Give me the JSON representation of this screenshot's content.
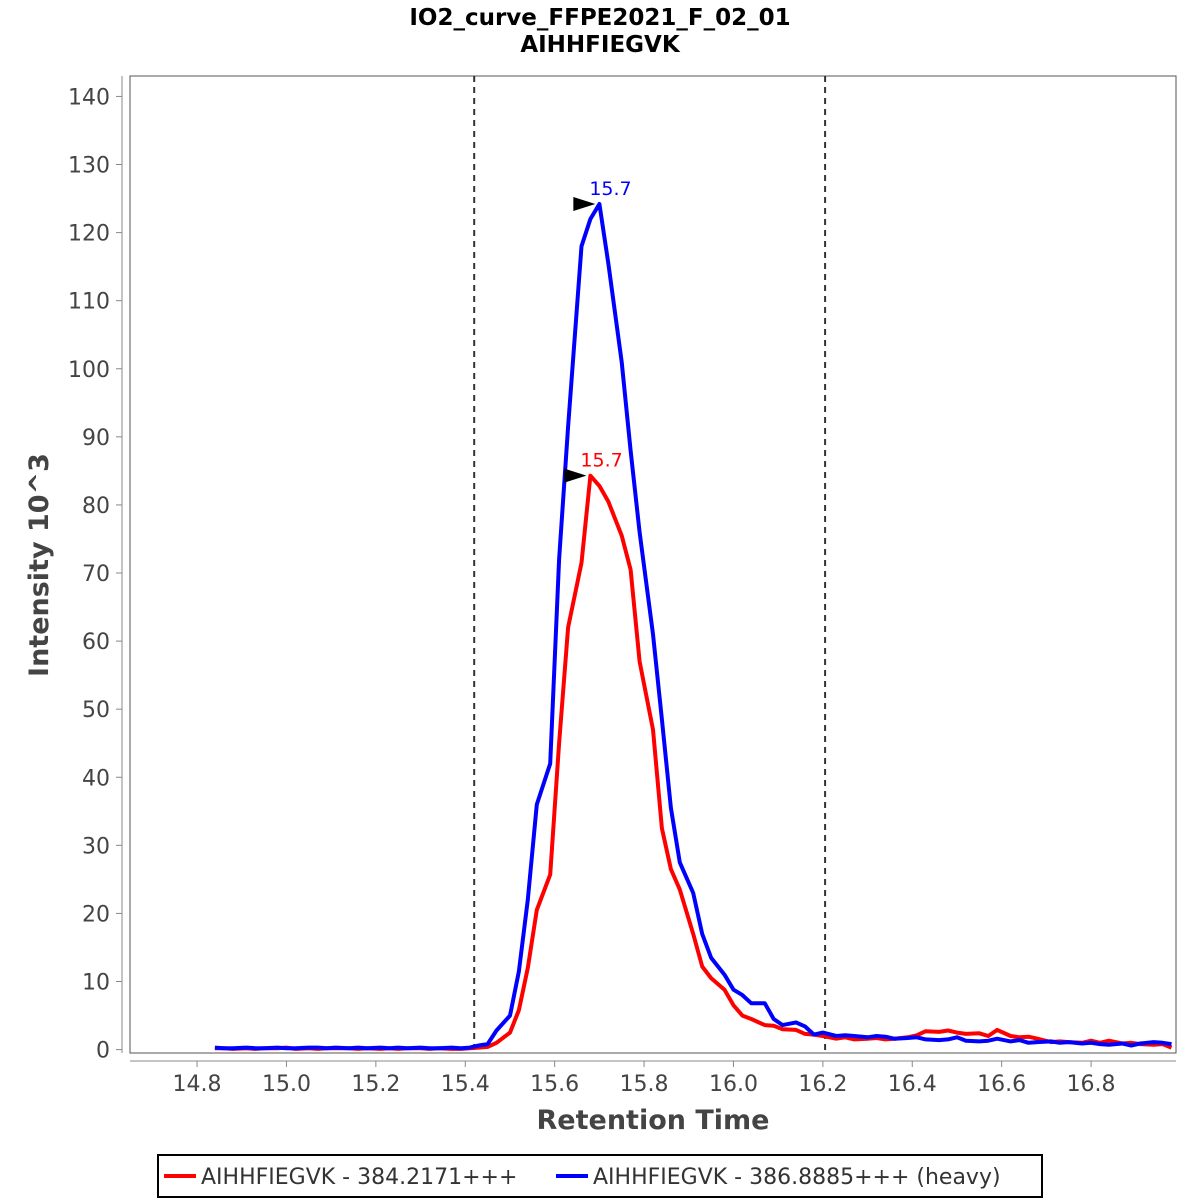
{
  "chart_data": {
    "type": "line",
    "title": "IO2_curve_FFPE2021_F_02_01",
    "subtitle": "AIHHFIEGVK",
    "xlabel": "Retention Time",
    "ylabel": "Intensity 10^3",
    "xlim": [
      14.65,
      16.99
    ],
    "ylim": [
      -0.5,
      143
    ],
    "x_ticks": [
      14.8,
      15.0,
      15.2,
      15.4,
      15.6,
      15.8,
      16.0,
      16.2,
      16.4,
      16.6,
      16.8
    ],
    "x_tick_labels": [
      "14.8",
      "15.0",
      "15.2",
      "15.4",
      "15.6",
      "15.8",
      "16.0",
      "16.2",
      "16.4",
      "16.6",
      "16.8"
    ],
    "y_ticks": [
      0,
      10,
      20,
      30,
      40,
      50,
      60,
      70,
      80,
      90,
      100,
      110,
      120,
      130,
      140
    ],
    "y_tick_labels": [
      "0",
      "10",
      "20",
      "30",
      "40",
      "50",
      "60",
      "70",
      "80",
      "90",
      "100",
      "110",
      "120",
      "130",
      "140"
    ],
    "boundaries": [
      15.42,
      16.205
    ],
    "legend_position": "bottom",
    "series": [
      {
        "name": "AIHHFIEGVK - 384.2171+++",
        "color": "#ff0000",
        "peak": {
          "x": 15.68,
          "y": 84.3,
          "label": "15.7"
        },
        "x": [
          14.84,
          14.86,
          14.88,
          14.91,
          14.93,
          14.95,
          14.98,
          15.0,
          15.02,
          15.05,
          15.07,
          15.09,
          15.11,
          15.14,
          15.16,
          15.18,
          15.21,
          15.23,
          15.25,
          15.27,
          15.3,
          15.32,
          15.34,
          15.37,
          15.39,
          15.41,
          15.43,
          15.45,
          15.47,
          15.5,
          15.52,
          15.54,
          15.56,
          15.59,
          15.61,
          15.63,
          15.66,
          15.68,
          15.7,
          15.72,
          15.75,
          15.77,
          15.79,
          15.82,
          15.84,
          15.86,
          15.88,
          15.91,
          15.93,
          15.95,
          15.98,
          16.0,
          16.02,
          16.04,
          16.07,
          16.09,
          16.11,
          16.14,
          16.16,
          16.18,
          16.2,
          16.23,
          16.25,
          16.27,
          16.3,
          16.32,
          16.34,
          16.36,
          16.39,
          16.41,
          16.43,
          16.46,
          16.48,
          16.5,
          16.52,
          16.55,
          16.57,
          16.59,
          16.62,
          16.64,
          16.66,
          16.68,
          16.71,
          16.73,
          16.75,
          16.78,
          16.8,
          16.82,
          16.84,
          16.87,
          16.89,
          16.91,
          16.94,
          16.96,
          16.98
        ],
        "y": [
          0.2,
          0.2,
          0.1,
          0.2,
          0.1,
          0.2,
          0.2,
          0.3,
          0.1,
          0.2,
          0.1,
          0.2,
          0.2,
          0.2,
          0.1,
          0.2,
          0.1,
          0.2,
          0.1,
          0.2,
          0.2,
          0.1,
          0.2,
          0.1,
          0.1,
          0.2,
          0.3,
          0.4,
          1.0,
          2.5,
          5.8,
          12.0,
          20.5,
          25.7,
          45.0,
          62.0,
          71.5,
          84.3,
          82.8,
          80.5,
          75.5,
          70.5,
          57.0,
          47.0,
          32.5,
          26.5,
          23.5,
          17.0,
          12.2,
          10.5,
          8.8,
          6.5,
          5.0,
          4.5,
          3.6,
          3.5,
          3.0,
          2.9,
          2.3,
          2.2,
          2.0,
          1.6,
          1.8,
          1.5,
          1.6,
          1.7,
          1.5,
          1.6,
          1.8,
          2.1,
          2.7,
          2.6,
          2.8,
          2.5,
          2.3,
          2.4,
          2.0,
          2.9,
          2.0,
          1.8,
          1.9,
          1.6,
          1.1,
          1.2,
          1.1,
          1.0,
          1.3,
          1.0,
          1.3,
          0.9,
          1.0,
          0.8,
          0.7,
          0.8,
          0.3
        ]
      },
      {
        "name": "AIHHFIEGVK - 386.8885+++ (heavy)",
        "color": "#0000ff",
        "peak": {
          "x": 15.7,
          "y": 124.2,
          "label": "15.7"
        },
        "x": [
          14.84,
          14.86,
          14.88,
          14.91,
          14.93,
          14.95,
          14.98,
          15.0,
          15.02,
          15.05,
          15.07,
          15.09,
          15.11,
          15.14,
          15.16,
          15.18,
          15.21,
          15.23,
          15.25,
          15.27,
          15.3,
          15.32,
          15.34,
          15.37,
          15.39,
          15.41,
          15.43,
          15.45,
          15.47,
          15.5,
          15.52,
          15.54,
          15.56,
          15.59,
          15.61,
          15.63,
          15.66,
          15.68,
          15.7,
          15.72,
          15.75,
          15.77,
          15.79,
          15.82,
          15.84,
          15.86,
          15.88,
          15.91,
          15.93,
          15.95,
          15.98,
          16.0,
          16.02,
          16.04,
          16.07,
          16.09,
          16.11,
          16.14,
          16.16,
          16.18,
          16.2,
          16.23,
          16.25,
          16.27,
          16.3,
          16.32,
          16.34,
          16.36,
          16.39,
          16.41,
          16.43,
          16.46,
          16.48,
          16.5,
          16.52,
          16.55,
          16.57,
          16.59,
          16.62,
          16.64,
          16.66,
          16.68,
          16.71,
          16.73,
          16.75,
          16.78,
          16.8,
          16.82,
          16.84,
          16.87,
          16.89,
          16.91,
          16.94,
          16.96,
          16.98
        ],
        "y": [
          0.3,
          0.2,
          0.2,
          0.3,
          0.2,
          0.2,
          0.3,
          0.2,
          0.2,
          0.3,
          0.3,
          0.2,
          0.3,
          0.2,
          0.3,
          0.2,
          0.3,
          0.2,
          0.3,
          0.2,
          0.3,
          0.2,
          0.2,
          0.3,
          0.2,
          0.3,
          0.6,
          0.8,
          2.8,
          5.0,
          11.5,
          22.0,
          36.0,
          42.0,
          72.0,
          91.5,
          118.0,
          122.0,
          124.2,
          115.5,
          101.0,
          88.0,
          76.0,
          61.0,
          48.5,
          35.5,
          27.5,
          23.0,
          17.0,
          13.5,
          11.0,
          8.8,
          8.0,
          6.8,
          6.8,
          4.5,
          3.6,
          4.0,
          3.4,
          2.2,
          2.5,
          2.0,
          2.1,
          2.0,
          1.8,
          2.0,
          1.9,
          1.6,
          1.7,
          1.8,
          1.5,
          1.4,
          1.5,
          1.8,
          1.3,
          1.2,
          1.3,
          1.6,
          1.2,
          1.4,
          1.0,
          1.1,
          1.2,
          1.0,
          1.1,
          0.9,
          1.0,
          0.8,
          0.7,
          0.9,
          0.6,
          0.9,
          1.1,
          1.0,
          0.8
        ]
      }
    ]
  }
}
